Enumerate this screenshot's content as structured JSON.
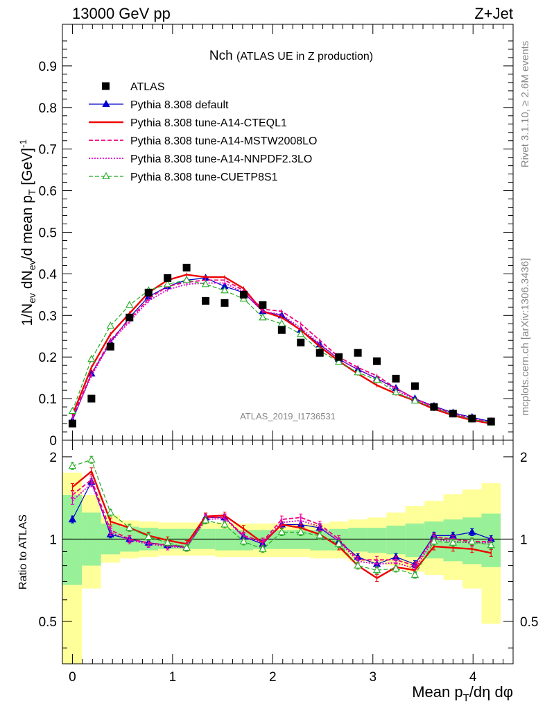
{
  "header": {
    "left": "13000 GeV pp",
    "right": "Z+Jet"
  },
  "side_labels": {
    "rivet": "Rivet 3.1.10, ≥ 2.6M events",
    "mcplots": "mcplots.cern.ch [arXiv:1306.3436]"
  },
  "colors": {
    "data": "#000000",
    "default": "#0000cc",
    "cteql1": "#ee0000",
    "mstw": "#ee0077",
    "nnpdf": "#dd00cc",
    "cuetp8s1": "#22aa22",
    "band_inner": "#98f098",
    "band_outer": "#ffff99"
  },
  "chart_data": [
    {
      "type": "line",
      "title": "Nch",
      "subtitle": "(ATLAS UE in Z production)",
      "analysis_label": "ATLAS_2019_I1736531",
      "xlabel": "Mean p_T/dη dφ",
      "ylabel": "1/N_ev dN_ev/d mean p_T [GeV]^-1",
      "xlim": [
        -0.1,
        4.4
      ],
      "ylim": [
        0,
        1.0
      ],
      "yticks": [
        "0",
        "0.1",
        "0.2",
        "0.3",
        "0.4",
        "0.5",
        "0.6",
        "0.7",
        "0.8",
        "0.9"
      ],
      "xticks": [
        "0",
        "1",
        "2",
        "3",
        "4"
      ],
      "x": [
        0.0,
        0.19,
        0.38,
        0.57,
        0.76,
        0.95,
        1.14,
        1.33,
        1.52,
        1.71,
        1.9,
        2.09,
        2.28,
        2.47,
        2.66,
        2.85,
        3.04,
        3.23,
        3.42,
        3.61,
        3.8,
        3.99,
        4.18
      ],
      "series": [
        {
          "key": "atlas",
          "name": "ATLAS",
          "style": "marker",
          "values": [
            0.04,
            0.1,
            0.225,
            0.295,
            0.355,
            0.39,
            0.415,
            0.335,
            0.33,
            0.35,
            0.325,
            0.265,
            0.235,
            0.21,
            0.2,
            0.21,
            0.19,
            0.148,
            0.13,
            0.08,
            0.064,
            0.052,
            0.045
          ]
        },
        {
          "key": "default",
          "name": "Pythia 8.308 default",
          "style": "solid-triangle",
          "values": [
            0.047,
            0.16,
            0.235,
            0.295,
            0.345,
            0.37,
            0.385,
            0.39,
            0.37,
            0.355,
            0.31,
            0.3,
            0.265,
            0.23,
            0.195,
            0.17,
            0.148,
            0.125,
            0.1,
            0.082,
            0.066,
            0.055,
            0.045
          ]
        },
        {
          "key": "cteql1",
          "name": "Pythia 8.308 tune-A14-CTEQL1",
          "style": "thick-solid",
          "values": [
            0.06,
            0.175,
            0.255,
            0.305,
            0.355,
            0.385,
            0.398,
            0.392,
            0.392,
            0.365,
            0.31,
            0.295,
            0.265,
            0.225,
            0.19,
            0.16,
            0.132,
            0.112,
            0.095,
            0.075,
            0.06,
            0.048,
            0.04
          ]
        },
        {
          "key": "mstw",
          "name": "Pythia 8.308 tune-A14-MSTW2008LO",
          "style": "dashed",
          "values": [
            0.055,
            0.16,
            0.24,
            0.29,
            0.34,
            0.37,
            0.38,
            0.385,
            0.385,
            0.36,
            0.315,
            0.31,
            0.28,
            0.24,
            0.2,
            0.175,
            0.155,
            0.125,
            0.1,
            0.08,
            0.064,
            0.052,
            0.043
          ]
        },
        {
          "key": "nnpdf",
          "name": "Pythia 8.308 tune-A14-NNPDF2.3LO",
          "style": "dotted",
          "values": [
            0.052,
            0.155,
            0.235,
            0.285,
            0.335,
            0.362,
            0.375,
            0.378,
            0.378,
            0.355,
            0.31,
            0.302,
            0.27,
            0.232,
            0.195,
            0.17,
            0.15,
            0.12,
            0.098,
            0.078,
            0.063,
            0.05,
            0.043
          ]
        },
        {
          "key": "cuetp8s1",
          "name": "Pythia 8.308 tune-CUETP8S1",
          "style": "dashed-open-triangle",
          "values": [
            0.07,
            0.195,
            0.275,
            0.325,
            0.36,
            0.375,
            0.385,
            0.375,
            0.36,
            0.34,
            0.295,
            0.28,
            0.255,
            0.215,
            0.188,
            0.163,
            0.145,
            0.115,
            0.095,
            0.078,
            0.062,
            0.05,
            0.042
          ]
        }
      ]
    },
    {
      "type": "line",
      "title": "Ratio to ATLAS",
      "ylabel": "Ratio to ATLAS",
      "xlabel": "Mean p_T/dη dφ",
      "xlim": [
        -0.1,
        4.4
      ],
      "ylim": [
        0.35,
        2.3
      ],
      "yscale": "log",
      "yticks": [
        "0.5",
        "1",
        "2"
      ],
      "xticks": [
        "0",
        "1",
        "2",
        "3",
        "4"
      ],
      "bin_edges": [
        -0.1,
        0.095,
        0.285,
        0.475,
        0.665,
        0.855,
        1.045,
        1.235,
        1.425,
        1.615,
        1.805,
        1.995,
        2.185,
        2.375,
        2.565,
        2.755,
        2.945,
        3.135,
        3.325,
        3.515,
        3.705,
        3.895,
        4.085,
        4.275
      ],
      "band_inner_lo": [
        0.68,
        0.8,
        0.88,
        0.9,
        0.91,
        0.92,
        0.92,
        0.92,
        0.91,
        0.91,
        0.92,
        0.92,
        0.92,
        0.91,
        0.91,
        0.9,
        0.89,
        0.88,
        0.86,
        0.85,
        0.83,
        0.81,
        0.79
      ],
      "band_inner_hi": [
        1.45,
        1.25,
        1.14,
        1.11,
        1.1,
        1.09,
        1.09,
        1.09,
        1.09,
        1.08,
        1.08,
        1.08,
        1.08,
        1.08,
        1.09,
        1.1,
        1.1,
        1.12,
        1.14,
        1.16,
        1.18,
        1.2,
        1.24
      ],
      "band_outer_lo": [
        0.3,
        0.66,
        0.82,
        0.85,
        0.86,
        0.87,
        0.87,
        0.87,
        0.86,
        0.86,
        0.86,
        0.86,
        0.86,
        0.85,
        0.85,
        0.83,
        0.82,
        0.8,
        0.76,
        0.74,
        0.71,
        0.66,
        0.49
      ],
      "band_outer_hi": [
        1.75,
        1.45,
        1.22,
        1.17,
        1.16,
        1.15,
        1.15,
        1.15,
        1.15,
        1.14,
        1.14,
        1.14,
        1.14,
        1.14,
        1.16,
        1.18,
        1.2,
        1.25,
        1.32,
        1.38,
        1.46,
        1.52,
        1.6
      ],
      "x": [
        0.0,
        0.19,
        0.38,
        0.57,
        0.76,
        0.95,
        1.14,
        1.33,
        1.52,
        1.71,
        1.9,
        2.09,
        2.28,
        2.47,
        2.66,
        2.85,
        3.04,
        3.23,
        3.42,
        3.61,
        3.8,
        3.99,
        4.18
      ],
      "series": [
        {
          "key": "default",
          "name": "Pythia 8.308 default",
          "values": [
            1.18,
            1.62,
            1.04,
            1.0,
            0.97,
            0.95,
            0.93,
            1.2,
            1.2,
            1.02,
            0.96,
            1.13,
            1.13,
            1.1,
            0.98,
            0.86,
            0.81,
            0.86,
            0.81,
            1.03,
            1.03,
            1.06,
            1.0
          ]
        },
        {
          "key": "cteql1",
          "name": "Pythia 8.308 tune-A14-CTEQL1",
          "values": [
            1.55,
            1.77,
            1.16,
            1.1,
            1.03,
            0.99,
            0.96,
            1.21,
            1.22,
            1.09,
            0.97,
            1.13,
            1.1,
            1.04,
            0.94,
            0.8,
            0.72,
            0.79,
            0.77,
            0.94,
            0.93,
            0.92,
            0.89
          ]
        },
        {
          "key": "mstw",
          "name": "Pythia 8.308 tune-A14-MSTW2008LO",
          "values": [
            1.45,
            1.65,
            1.08,
            1.0,
            0.97,
            0.95,
            0.94,
            1.2,
            1.2,
            1.03,
            0.98,
            1.18,
            1.2,
            1.13,
            1.0,
            0.84,
            0.84,
            0.84,
            0.8,
            1.02,
            1.0,
            0.98,
            0.98
          ]
        },
        {
          "key": "nnpdf",
          "name": "Pythia 8.308 tune-A14-NNPDF2.3LO",
          "values": [
            1.38,
            1.6,
            1.06,
            0.99,
            0.96,
            0.94,
            0.93,
            1.18,
            1.19,
            1.02,
            0.97,
            1.15,
            1.17,
            1.11,
            0.98,
            0.83,
            0.81,
            0.82,
            0.78,
            1.0,
            0.98,
            0.97,
            0.97
          ]
        },
        {
          "key": "cuetp8s1",
          "name": "Pythia 8.308 tune-CUETP8S1",
          "values": [
            1.85,
            1.95,
            1.25,
            1.1,
            1.02,
            0.97,
            0.93,
            1.17,
            1.13,
            0.98,
            0.92,
            1.06,
            1.06,
            1.03,
            0.96,
            0.8,
            0.77,
            0.78,
            0.74,
            0.98,
            0.97,
            0.98,
            0.95
          ]
        }
      ]
    }
  ]
}
